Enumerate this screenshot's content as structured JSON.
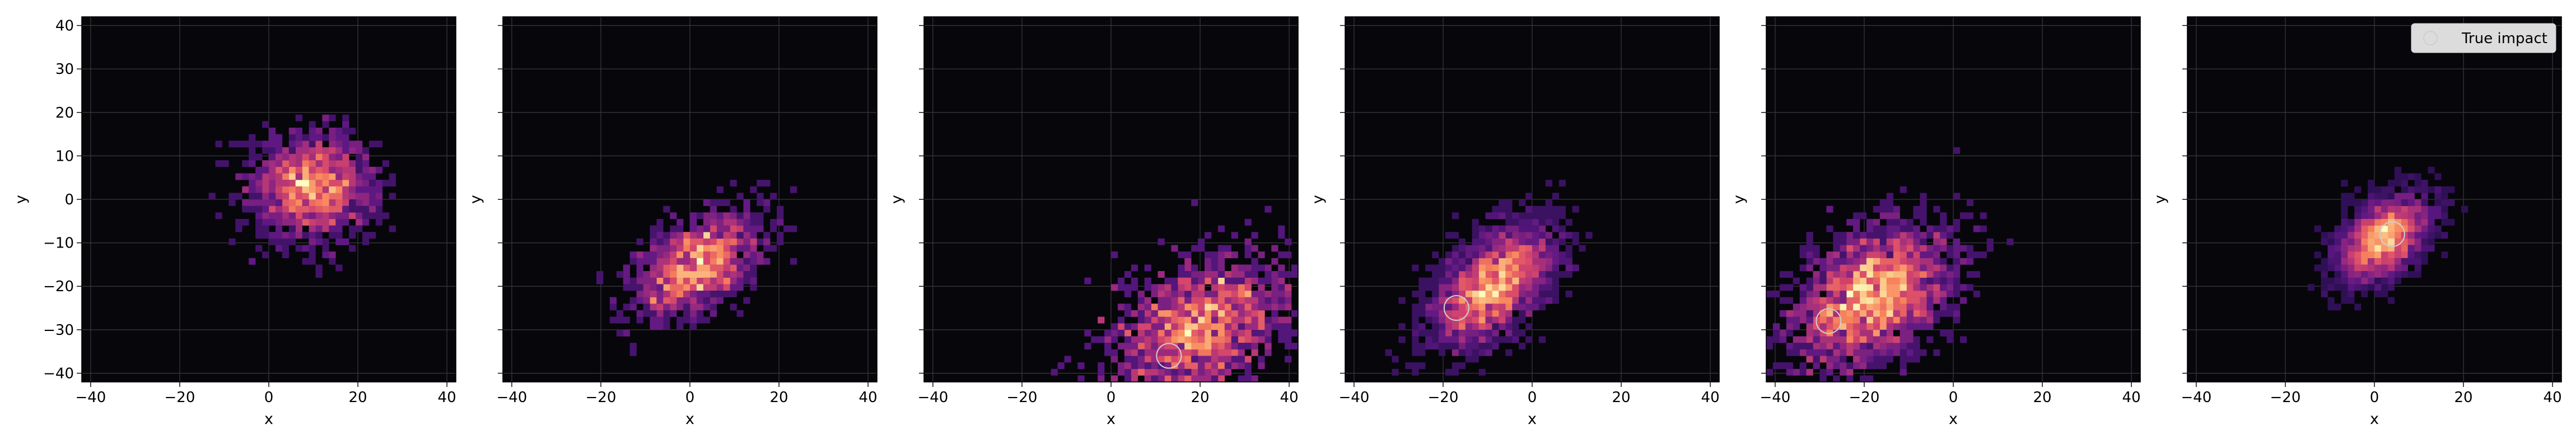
{
  "chart_data": {
    "type": "heatmap",
    "description_kind": "2D histogram density of sampled points per panel",
    "xlim": [
      -42,
      42
    ],
    "ylim": [
      -42,
      42
    ],
    "xticks": [
      -40,
      -20,
      0,
      20,
      40
    ],
    "yticks": [
      -40,
      -30,
      -20,
      -10,
      0,
      10,
      20,
      30,
      40
    ],
    "tick_labels_x": [
      "−40",
      "−20",
      "0",
      "20",
      "40"
    ],
    "tick_labels_y": [
      "−40",
      "−30",
      "−20",
      "−10",
      "0",
      "10",
      "20",
      "30",
      "40"
    ],
    "grid": true,
    "background": "#07060b",
    "colormap": [
      "#1a0c40",
      "#5b1782",
      "#9b2a7f",
      "#d8486b",
      "#f8845c",
      "#fcc98a",
      "#fcfdbf"
    ],
    "true_impact_color": "#cfcfcf",
    "legend": {
      "label": "True impact",
      "placement": "top-right",
      "panel": 6
    },
    "panels": [
      {
        "xlabel": "x",
        "ylabel": "y",
        "show_y_ticklabels": true,
        "cluster": {
          "cx": 10,
          "cy": 3,
          "sx": 7,
          "sy": 6,
          "rho": 0.0,
          "n": 1500
        },
        "true_impact": null
      },
      {
        "xlabel": "x",
        "ylabel": "y",
        "show_y_ticklabels": false,
        "cluster": {
          "cx": 2,
          "cy": -15,
          "sx": 7,
          "sy": 6,
          "rho": 0.45,
          "n": 1300
        },
        "true_impact": null
      },
      {
        "xlabel": "x",
        "ylabel": "y",
        "show_y_ticklabels": false,
        "cluster": {
          "cx": 20,
          "cy": -30,
          "sx": 10,
          "sy": 8,
          "rho": 0.35,
          "n": 1600
        },
        "true_impact": {
          "x": 13,
          "y": -36
        }
      },
      {
        "xlabel": "x",
        "ylabel": "y",
        "show_y_ticklabels": false,
        "cluster": {
          "cx": -9,
          "cy": -20,
          "sx": 7,
          "sy": 7,
          "rho": 0.55,
          "n": 2200
        },
        "true_impact": {
          "x": -17,
          "y": -25
        }
      },
      {
        "xlabel": "x",
        "ylabel": "y",
        "show_y_ticklabels": false,
        "cluster": {
          "cx": -18,
          "cy": -22,
          "sx": 9,
          "sy": 8,
          "rho": 0.4,
          "n": 2600
        },
        "true_impact": {
          "x": -28,
          "y": -28
        }
      },
      {
        "xlabel": "x",
        "ylabel": "y",
        "show_y_ticklabels": false,
        "cluster": {
          "cx": 2,
          "cy": -9,
          "sx": 5,
          "sy": 5,
          "rho": 0.45,
          "n": 2400
        },
        "true_impact": {
          "x": 4,
          "y": -8
        }
      }
    ]
  }
}
